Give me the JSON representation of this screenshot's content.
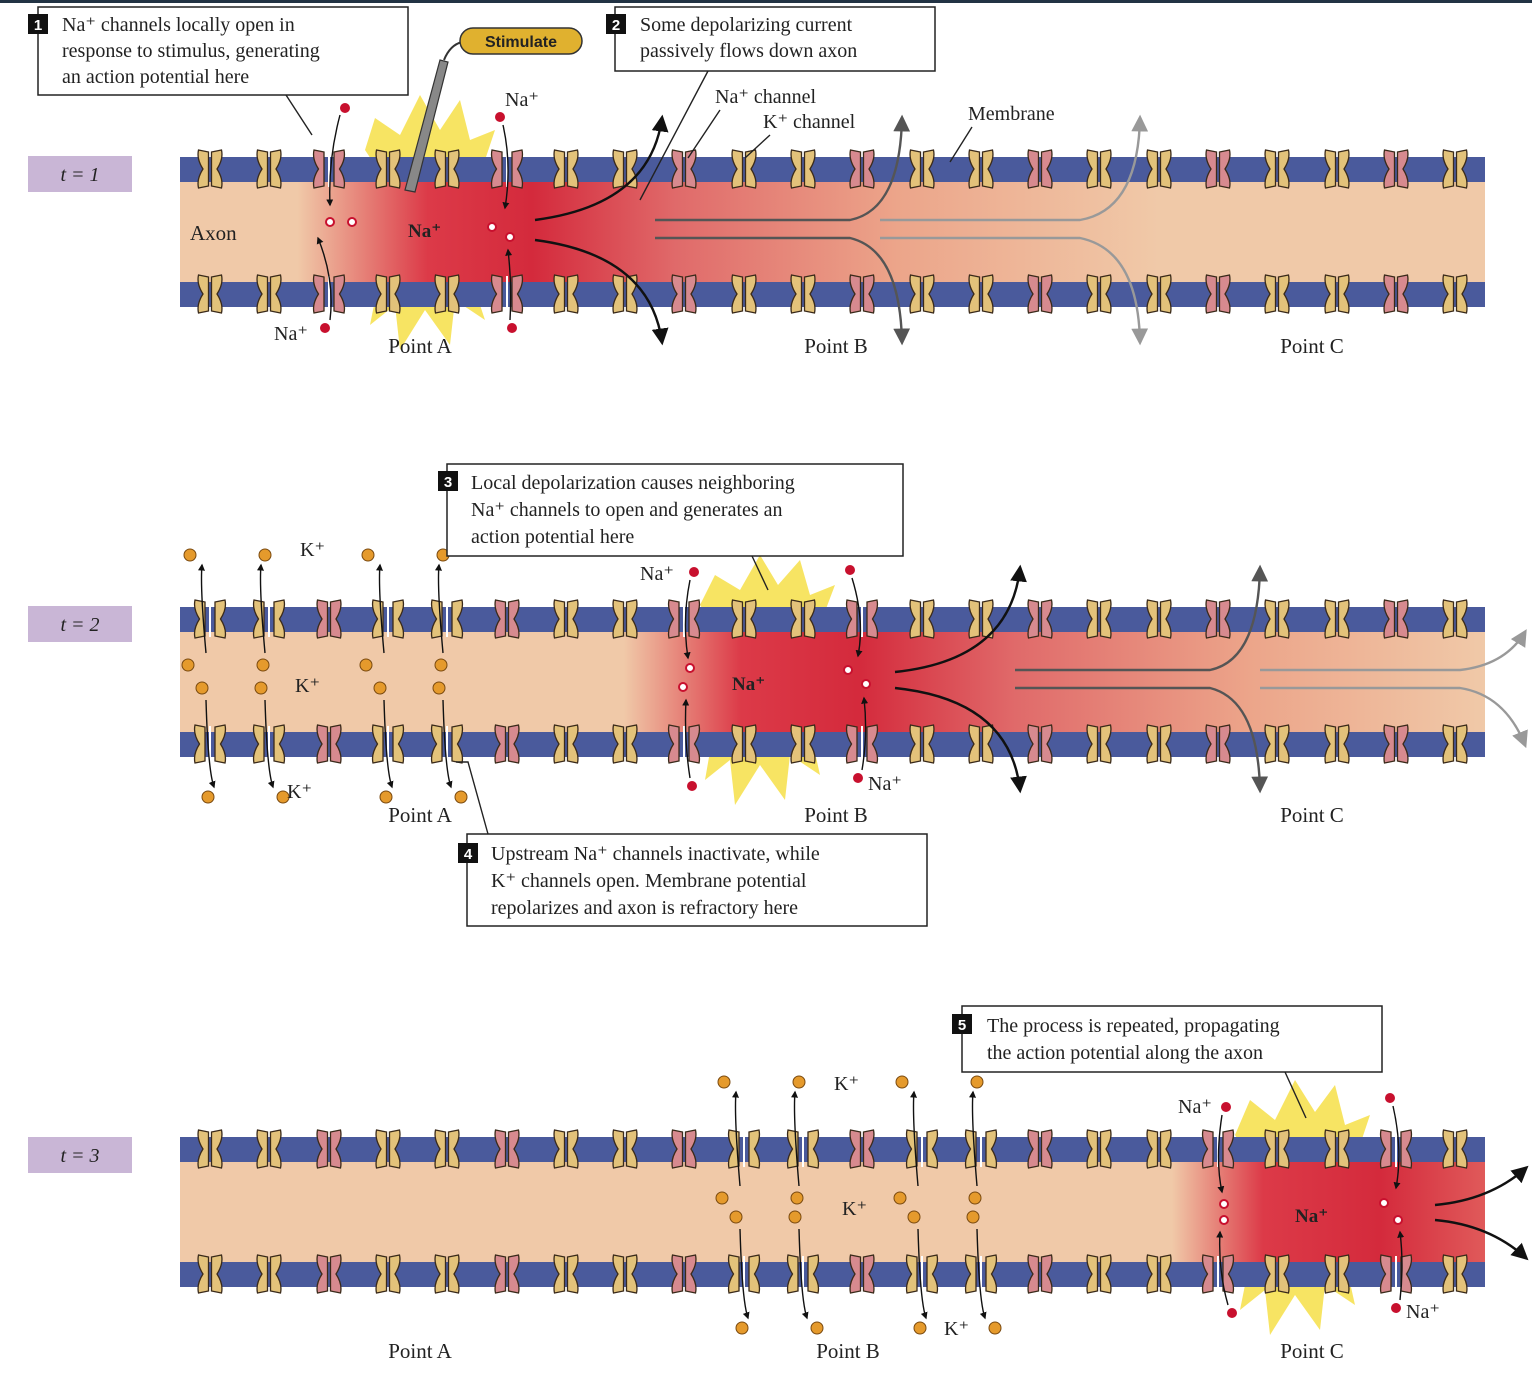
{
  "colors": {
    "membrane": "#4a5a9c",
    "cytoplasm": "#f0c9a8",
    "depolarized": "#d42a3c",
    "channel_k": "#e3c27a",
    "channel_na": "#d78a8f",
    "na_ion": "#c8102e",
    "k_ion": "#e59a2c",
    "flash": "#f6df48",
    "time_box": "#c9b6d6"
  },
  "icons": [
    "na-channel-icon",
    "k-channel-icon",
    "na-ion-icon",
    "k-ion-icon",
    "stimulating-electrode-icon",
    "current-arrow-icon"
  ],
  "panels": [
    {
      "time_label": "t = 1",
      "axon_label": "Axon",
      "na_label": "Na⁺",
      "points": [
        "Point A",
        "Point B",
        "Point C"
      ]
    },
    {
      "time_label": "t = 2",
      "na_label": "Na⁺",
      "k_label": "K⁺",
      "points": [
        "Point A",
        "Point B",
        "Point C"
      ]
    },
    {
      "time_label": "t = 3",
      "na_label": "Na⁺",
      "k_label": "K⁺",
      "points": [
        "Point A",
        "Point B",
        "Point C"
      ]
    }
  ],
  "labels": {
    "stimulate": "Stimulate",
    "na_plus": "Na⁺",
    "k_plus": "K⁺",
    "na_channel": "Na⁺ channel",
    "k_channel": "K⁺ channel",
    "membrane": "Membrane"
  },
  "callouts": [
    {
      "number": "1",
      "lines": [
        "Na⁺ channels locally open in",
        "response to stimulus, generating",
        "an action potential here"
      ]
    },
    {
      "number": "2",
      "lines": [
        "Some depolarizing current",
        "passively flows down axon"
      ]
    },
    {
      "number": "3",
      "lines": [
        "Local depolarization causes neighboring",
        "Na⁺ channels to open and generates an",
        "action potential here"
      ]
    },
    {
      "number": "4",
      "lines": [
        "Upstream Na⁺ channels inactivate, while",
        "K⁺ channels open. Membrane potential",
        "repolarizes and axon is refractory here"
      ]
    },
    {
      "number": "5",
      "lines": [
        "The process is repeated, propagating",
        "the action potential along the axon"
      ]
    }
  ]
}
